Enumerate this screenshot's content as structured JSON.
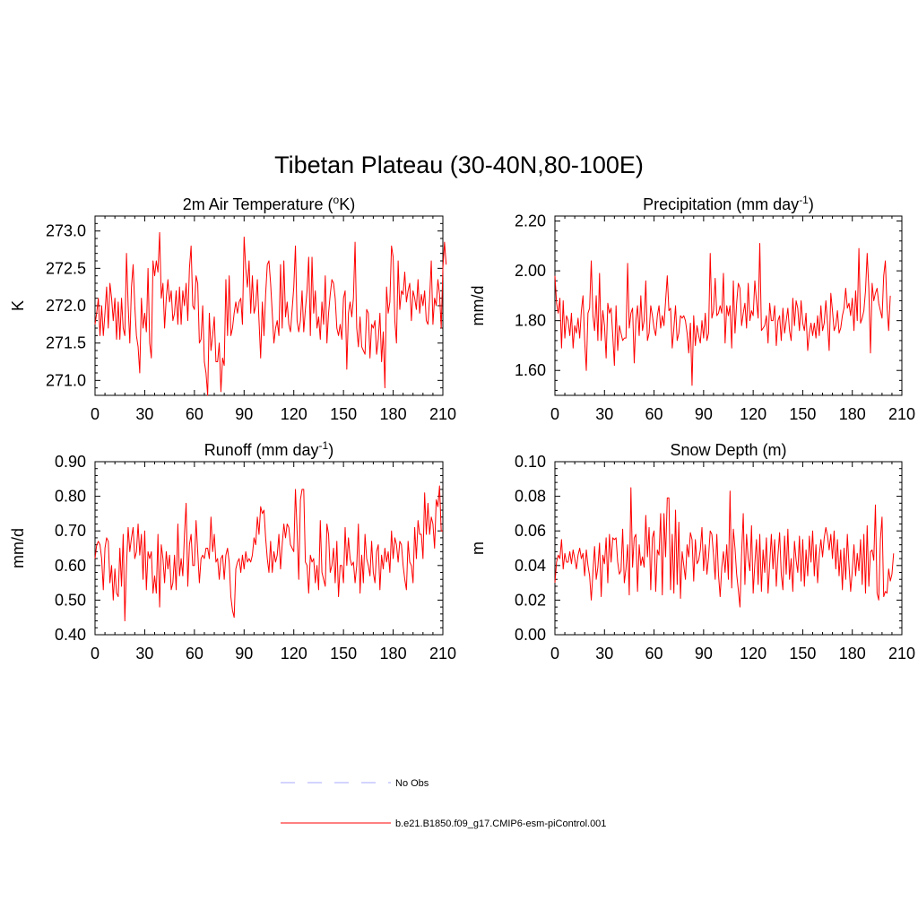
{
  "figure": {
    "title": "Tibetan Plateau (30-40N,80-100E)"
  },
  "chart_data": [
    {
      "type": "line",
      "title": "2m Air Temperature (",
      "title_sup": "o",
      "title_after": "K)",
      "ylabel": "K",
      "xlim": [
        0,
        210
      ],
      "ylim": [
        270.8,
        273.2
      ],
      "x_ticks": [
        0,
        30,
        60,
        90,
        120,
        150,
        180,
        210
      ],
      "x_tick_labels": [
        "0",
        "30",
        "60",
        "90",
        "120",
        "150",
        "180",
        "210"
      ],
      "y_ticks": [
        271.0,
        271.5,
        272.0,
        272.5,
        273.0
      ],
      "y_tick_labels": [
        "271.0",
        "271.5",
        "272.0",
        "272.5",
        "273.0"
      ],
      "series": [
        {
          "color": "#ff0000",
          "x_start": 0,
          "x_step": 1,
          "values": [
            271.75,
            271.9,
            272.1,
            271.6,
            272.0,
            271.6,
            271.9,
            272.25,
            271.7,
            272.3,
            272.1,
            271.8,
            272.1,
            271.55,
            272.05,
            271.55,
            272.1,
            271.7,
            271.6,
            272.7,
            272.0,
            271.5,
            272.25,
            272.55,
            272.0,
            271.6,
            271.45,
            271.1,
            272.1,
            271.7,
            271.9,
            271.65,
            272.5,
            271.5,
            271.3,
            272.6,
            272.4,
            272.6,
            272.45,
            272.98,
            272.1,
            272.3,
            271.7,
            272.1,
            272.35,
            272.05,
            272.2,
            271.8,
            271.9,
            272.2,
            271.75,
            272.25,
            271.75,
            272.2,
            272.0,
            272.3,
            271.8,
            272.5,
            272.8,
            272.0,
            271.95,
            272.4,
            272.3,
            271.5,
            271.55,
            272.0,
            271.25,
            271.1,
            270.8,
            271.9,
            271.4,
            271.6,
            271.85,
            271.25,
            271.25,
            271.5,
            270.85,
            271.3,
            271.2,
            272.35,
            271.6,
            272.4,
            271.6,
            271.7,
            271.9,
            272.05,
            271.9,
            272.05,
            272.1,
            271.75,
            272.92,
            272.5,
            272.25,
            272.6,
            271.9,
            272.4,
            271.9,
            272.0,
            272.35,
            271.8,
            271.3,
            272.05,
            271.6,
            272.15,
            272.55,
            272.6,
            272.3,
            271.9,
            271.5,
            271.7,
            271.8,
            271.6,
            272.55,
            271.7,
            272.6,
            271.85,
            272.05,
            271.75,
            271.65,
            271.95,
            272.25,
            272.8,
            271.8,
            271.65,
            271.8,
            272.2,
            271.65,
            271.95,
            272.2,
            272.65,
            271.6,
            272.65,
            271.9,
            272.2,
            271.7,
            271.85,
            271.55,
            272.05,
            271.75,
            272.4,
            271.5,
            271.9,
            272.15,
            272.35,
            272.3,
            272.1,
            271.7,
            271.6,
            271.75,
            271.55,
            272.1,
            272.2,
            271.15,
            271.9,
            272.05,
            271.85,
            272.1,
            272.85,
            271.7,
            271.45,
            271.85,
            271.45,
            271.4,
            271.35,
            271.95,
            271.9,
            271.3,
            271.75,
            271.7,
            271.8,
            271.35,
            271.55,
            271.9,
            271.25,
            271.65,
            270.9,
            272.25,
            271.9,
            272.05,
            272.8,
            272.65,
            271.8,
            271.5,
            272.6,
            271.95,
            272.2,
            272.15,
            272.45,
            272.05,
            272.2,
            272.3,
            271.8,
            272.2,
            272.1,
            271.95,
            272.35,
            271.9,
            272.15,
            272.0,
            272.2,
            271.8,
            271.75,
            272.1,
            272.6,
            271.75,
            272.1,
            272.0,
            272.35,
            272.15,
            271.7,
            272.5,
            272.85,
            272.55
          ]
        }
      ]
    },
    {
      "type": "line",
      "title": "Precipitation (mm day",
      "title_sup": "-1",
      "title_after": ")",
      "ylabel": "mm/d",
      "xlim": [
        0,
        210
      ],
      "ylim": [
        1.5,
        2.22
      ],
      "x_ticks": [
        0,
        30,
        60,
        90,
        120,
        150,
        180,
        210
      ],
      "x_tick_labels": [
        "0",
        "30",
        "60",
        "90",
        "120",
        "150",
        "180",
        "210"
      ],
      "y_ticks": [
        1.6,
        1.8,
        2.0,
        2.2
      ],
      "y_tick_labels": [
        "1.60",
        "1.80",
        "2.00",
        "2.20"
      ],
      "series": [
        {
          "color": "#ff0000",
          "x_start": 0,
          "x_step": 1,
          "values": [
            1.98,
            1.87,
            1.83,
            1.89,
            1.69,
            1.88,
            1.73,
            1.82,
            1.8,
            1.74,
            1.83,
            1.69,
            1.78,
            1.75,
            1.81,
            1.73,
            1.84,
            1.9,
            1.72,
            1.6,
            1.83,
            1.85,
            2.04,
            1.82,
            1.76,
            1.9,
            1.72,
            1.99,
            1.72,
            1.84,
            1.78,
            1.65,
            1.87,
            1.83,
            1.85,
            1.74,
            1.62,
            1.86,
            1.68,
            1.78,
            1.75,
            1.72,
            1.73,
            1.73,
            2.03,
            1.77,
            1.83,
            1.85,
            1.63,
            1.8,
            1.86,
            1.74,
            1.9,
            1.76,
            1.8,
            1.96,
            1.72,
            1.75,
            1.86,
            1.82,
            1.77,
            1.74,
            1.82,
            1.86,
            1.77,
            1.82,
            1.78,
            1.88,
            1.98,
            1.84,
            1.85,
            1.69,
            1.77,
            1.86,
            1.72,
            1.75,
            1.82,
            1.81,
            1.82,
            1.8,
            1.75,
            1.67,
            1.79,
            1.54,
            1.82,
            1.7,
            1.78,
            1.74,
            1.71,
            1.8,
            1.73,
            1.83,
            1.72,
            1.75,
            2.07,
            1.81,
            1.84,
            1.97,
            1.82,
            1.83,
            1.86,
            1.83,
            1.99,
            1.71,
            1.86,
            1.82,
            1.86,
            1.69,
            1.96,
            1.75,
            1.87,
            1.95,
            1.93,
            1.78,
            1.83,
            1.87,
            1.77,
            1.95,
            1.8,
            1.84,
            1.82,
            1.96,
            1.88,
            1.81,
            2.11,
            1.76,
            1.77,
            1.78,
            1.82,
            1.71,
            1.87,
            1.8,
            1.8,
            1.86,
            1.7,
            1.8,
            1.82,
            1.72,
            1.85,
            1.75,
            1.8,
            1.85,
            1.76,
            1.72,
            1.89,
            1.78,
            1.88,
            1.85,
            1.76,
            1.88,
            1.79,
            1.76,
            1.83,
            1.68,
            1.75,
            1.79,
            1.74,
            1.79,
            1.73,
            1.82,
            1.74,
            1.86,
            1.76,
            1.79,
            1.88,
            1.79,
            1.68,
            1.91,
            1.84,
            1.76,
            1.78,
            1.84,
            1.75,
            1.77,
            1.82,
            1.85,
            1.93,
            1.85,
            1.87,
            1.82,
            1.89,
            1.76,
            1.92,
            1.8,
            2.09,
            1.79,
            1.81,
            1.84,
            1.92,
            2.07,
            1.93,
            1.67,
            1.95,
            1.88,
            1.91,
            1.93,
            1.87,
            1.84,
            1.81,
            1.98,
            2.04,
            1.86,
            1.76,
            1.9
          ]
        }
      ]
    },
    {
      "type": "line",
      "title": "Runoff (mm day",
      "title_sup": "-1",
      "title_after": ")",
      "ylabel": "mm/d",
      "xlim": [
        0,
        210
      ],
      "ylim": [
        0.4,
        0.9
      ],
      "x_ticks": [
        0,
        30,
        60,
        90,
        120,
        150,
        180,
        210
      ],
      "x_tick_labels": [
        "0",
        "30",
        "60",
        "90",
        "120",
        "150",
        "180",
        "210"
      ],
      "y_ticks": [
        0.4,
        0.5,
        0.6,
        0.7,
        0.8,
        0.9
      ],
      "y_tick_labels": [
        "0.40",
        "0.50",
        "0.60",
        "0.70",
        "0.80",
        "0.90"
      ],
      "series": [
        {
          "color": "#ff0000",
          "x_start": 0,
          "x_step": 1,
          "values": [
            0.62,
            0.66,
            0.67,
            0.66,
            0.62,
            0.53,
            0.65,
            0.68,
            0.67,
            0.55,
            0.6,
            0.5,
            0.59,
            0.52,
            0.51,
            0.65,
            0.54,
            0.69,
            0.44,
            0.6,
            0.71,
            0.64,
            0.68,
            0.71,
            0.62,
            0.64,
            0.72,
            0.63,
            0.69,
            0.56,
            0.7,
            0.53,
            0.64,
            0.62,
            0.64,
            0.52,
            0.57,
            0.52,
            0.69,
            0.48,
            0.66,
            0.62,
            0.55,
            0.64,
            0.59,
            0.63,
            0.53,
            0.55,
            0.63,
            0.53,
            0.72,
            0.57,
            0.62,
            0.57,
            0.69,
            0.78,
            0.54,
            0.66,
            0.69,
            0.6,
            0.6,
            0.73,
            0.64,
            0.55,
            0.62,
            0.63,
            0.62,
            0.65,
            0.65,
            0.62,
            0.74,
            0.64,
            0.69,
            0.61,
            0.62,
            0.56,
            0.62,
            0.63,
            0.56,
            0.63,
            0.65,
            0.61,
            0.51,
            0.47,
            0.45,
            0.59,
            0.61,
            0.62,
            0.58,
            0.63,
            0.59,
            0.64,
            0.61,
            0.62,
            0.61,
            0.63,
            0.68,
            0.66,
            0.74,
            0.69,
            0.77,
            0.75,
            0.76,
            0.68,
            0.62,
            0.58,
            0.67,
            0.58,
            0.64,
            0.61,
            0.63,
            0.69,
            0.59,
            0.66,
            0.72,
            0.68,
            0.72,
            0.71,
            0.66,
            0.65,
            0.64,
            0.82,
            0.7,
            0.56,
            0.79,
            0.82,
            0.82,
            0.61,
            0.6,
            0.52,
            0.63,
            0.61,
            0.62,
            0.55,
            0.6,
            0.53,
            0.73,
            0.58,
            0.56,
            0.54,
            0.72,
            0.69,
            0.58,
            0.6,
            0.65,
            0.55,
            0.67,
            0.51,
            0.6,
            0.6,
            0.55,
            0.71,
            0.6,
            0.68,
            0.62,
            0.6,
            0.61,
            0.55,
            0.6,
            0.72,
            0.52,
            0.63,
            0.55,
            0.69,
            0.62,
            0.6,
            0.57,
            0.67,
            0.58,
            0.55,
            0.64,
            0.66,
            0.53,
            0.63,
            0.59,
            0.65,
            0.61,
            0.64,
            0.58,
            0.7,
            0.62,
            0.68,
            0.66,
            0.61,
            0.67,
            0.66,
            0.6,
            0.56,
            0.53,
            0.67,
            0.61,
            0.6,
            0.55,
            0.71,
            0.62,
            0.73,
            0.69,
            0.69,
            0.62,
            0.81,
            0.69,
            0.78,
            0.69,
            0.74,
            0.72,
            0.65,
            0.79,
            0.77,
            0.83,
            0.7,
            0.7
          ]
        }
      ]
    },
    {
      "type": "line",
      "title": "Snow Depth (m)",
      "title_sup": "",
      "title_after": "",
      "ylabel": "m",
      "xlim": [
        0,
        210
      ],
      "ylim": [
        0.0,
        0.1
      ],
      "x_ticks": [
        0,
        30,
        60,
        90,
        120,
        150,
        180,
        210
      ],
      "x_tick_labels": [
        "0",
        "30",
        "60",
        "90",
        "120",
        "150",
        "180",
        "210"
      ],
      "y_ticks": [
        0.0,
        0.02,
        0.04,
        0.06,
        0.08,
        0.1
      ],
      "y_tick_labels": [
        "0.00",
        "0.02",
        "0.04",
        "0.06",
        "0.08",
        "0.10"
      ],
      "series": [
        {
          "color": "#ff0000",
          "x_start": 0,
          "x_step": 1,
          "values": [
            0.03,
            0.042,
            0.046,
            0.044,
            0.055,
            0.038,
            0.047,
            0.042,
            0.042,
            0.048,
            0.041,
            0.049,
            0.044,
            0.038,
            0.046,
            0.05,
            0.044,
            0.047,
            0.034,
            0.049,
            0.04,
            0.034,
            0.02,
            0.036,
            0.051,
            0.032,
            0.039,
            0.053,
            0.022,
            0.046,
            0.041,
            0.056,
            0.03,
            0.058,
            0.042,
            0.056,
            0.055,
            0.056,
            0.042,
            0.035,
            0.037,
            0.061,
            0.03,
            0.038,
            0.052,
            0.023,
            0.085,
            0.039,
            0.056,
            0.058,
            0.025,
            0.052,
            0.04,
            0.045,
            0.039,
            0.069,
            0.045,
            0.062,
            0.026,
            0.056,
            0.06,
            0.025,
            0.049,
            0.046,
            0.07,
            0.023,
            0.07,
            0.045,
            0.079,
            0.079,
            0.026,
            0.058,
            0.024,
            0.072,
            0.029,
            0.065,
            0.021,
            0.048,
            0.04,
            0.032,
            0.052,
            0.045,
            0.059,
            0.055,
            0.031,
            0.055,
            0.041,
            0.043,
            0.049,
            0.062,
            0.037,
            0.052,
            0.035,
            0.045,
            0.06,
            0.058,
            0.046,
            0.032,
            0.058,
            0.035,
            0.022,
            0.039,
            0.048,
            0.036,
            0.052,
            0.032,
            0.083,
            0.027,
            0.061,
            0.05,
            0.035,
            0.026,
            0.016,
            0.047,
            0.07,
            0.029,
            0.058,
            0.044,
            0.037,
            0.063,
            0.024,
            0.041,
            0.055,
            0.029,
            0.058,
            0.025,
            0.049,
            0.036,
            0.056,
            0.024,
            0.041,
            0.058,
            0.038,
            0.055,
            0.028,
            0.046,
            0.059,
            0.035,
            0.026,
            0.057,
            0.035,
            0.061,
            0.032,
            0.044,
            0.025,
            0.054,
            0.043,
            0.036,
            0.057,
            0.031,
            0.055,
            0.028,
            0.049,
            0.034,
            0.057,
            0.042,
            0.06,
            0.034,
            0.052,
            0.03,
            0.046,
            0.055,
            0.045,
            0.056,
            0.062,
            0.057,
            0.049,
            0.058,
            0.044,
            0.06,
            0.038,
            0.055,
            0.034,
            0.049,
            0.026,
            0.05,
            0.032,
            0.058,
            0.04,
            0.025,
            0.037,
            0.052,
            0.034,
            0.047,
            0.037,
            0.055,
            0.029,
            0.058,
            0.024,
            0.063,
            0.028,
            0.048,
            0.049,
            0.043,
            0.075,
            0.024,
            0.02,
            0.055,
            0.068,
            0.022,
            0.025,
            0.024,
            0.038,
            0.031,
            0.035,
            0.047
          ]
        }
      ]
    }
  ],
  "legend": {
    "items": [
      {
        "label": "No Obs",
        "color": "#aaaaff",
        "dash": "dashed"
      },
      {
        "label": "b.e21.B1850.f09_g17.CMIP6-esm-piControl.001",
        "color": "#ff0000",
        "dash": "solid"
      }
    ]
  }
}
